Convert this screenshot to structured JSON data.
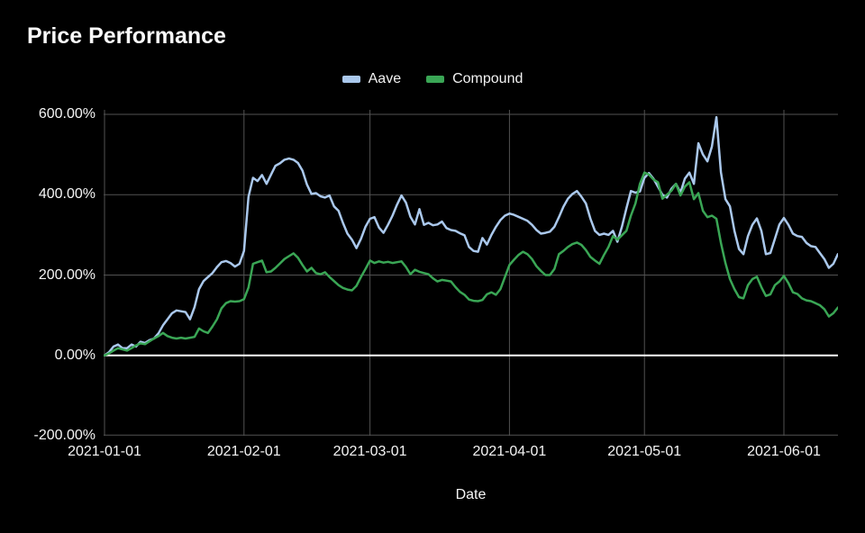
{
  "page": {
    "background": "#000000",
    "text_color": "#f2f2f2"
  },
  "header": {
    "title": "Price Performance"
  },
  "legend": {
    "items": [
      {
        "label": "Aave",
        "color": "#aac8ec"
      },
      {
        "label": "Compound",
        "color": "#3aa655"
      }
    ]
  },
  "chart_data": {
    "type": "line",
    "title": "Price Performance",
    "xlabel": "Date",
    "ylabel": "",
    "y_unit": "percent",
    "ylim": [
      -200,
      600
    ],
    "grid": true,
    "grid_color": "#525252",
    "zero_line_color": "#ffffff",
    "legend_position": "top-center",
    "x_start": "2021-01-01",
    "x_step_days": 1,
    "x_tick_labels": [
      "2021-01-01",
      "2021-02-01",
      "2021-03-01",
      "2021-04-01",
      "2021-05-01",
      "2021-06-01"
    ],
    "x_tick_day_index": [
      0,
      31,
      59,
      90,
      120,
      151
    ],
    "y_tick_labels": [
      "600.00%",
      "400.00%",
      "200.00%",
      "0.00%",
      "-200.00%"
    ],
    "y_tick_values": [
      600,
      400,
      200,
      0,
      -200
    ],
    "series": [
      {
        "name": "Aave",
        "color": "#aac8ec",
        "values": [
          0,
          8,
          22,
          27,
          18,
          18,
          27,
          22,
          34,
          31,
          38,
          42,
          55,
          75,
          90,
          105,
          112,
          110,
          108,
          90,
          120,
          165,
          185,
          195,
          205,
          220,
          232,
          235,
          230,
          221,
          228,
          260,
          395,
          442,
          434,
          449,
          427,
          450,
          472,
          478,
          487,
          490,
          487,
          479,
          460,
          425,
          402,
          404,
          396,
          393,
          398,
          371,
          360,
          330,
          303,
          288,
          267,
          290,
          320,
          340,
          344,
          318,
          305,
          325,
          348,
          375,
          398,
          380,
          345,
          326,
          364,
          325,
          330,
          324,
          326,
          333,
          317,
          312,
          310,
          304,
          299,
          270,
          260,
          258,
          292,
          276,
          300,
          320,
          337,
          348,
          353,
          350,
          345,
          340,
          335,
          325,
          312,
          303,
          305,
          308,
          320,
          344,
          370,
          390,
          402,
          409,
          395,
          378,
          340,
          310,
          300,
          303,
          300,
          310,
          283,
          320,
          366,
          409,
          405,
          408,
          442,
          454,
          440,
          420,
          400,
          393,
          415,
          427,
          405,
          440,
          455,
          427,
          528,
          500,
          483,
          520,
          593,
          456,
          389,
          371,
          310,
          265,
          252,
          297,
          325,
          341,
          310,
          252,
          255,
          290,
          326,
          342,
          325,
          303,
          297,
          295,
          280,
          272,
          270,
          255,
          240,
          218,
          228,
          252
        ]
      },
      {
        "name": "Compound",
        "color": "#3aa655",
        "values": [
          0,
          5,
          12,
          18,
          15,
          12,
          18,
          25,
          30,
          28,
          35,
          42,
          48,
          56,
          48,
          44,
          42,
          44,
          42,
          44,
          46,
          67,
          60,
          56,
          72,
          90,
          117,
          130,
          135,
          134,
          135,
          140,
          169,
          228,
          232,
          236,
          207,
          209,
          218,
          229,
          240,
          247,
          254,
          243,
          225,
          209,
          218,
          205,
          202,
          207,
          195,
          185,
          175,
          168,
          164,
          162,
          173,
          195,
          215,
          236,
          230,
          234,
          231,
          233,
          230,
          232,
          234,
          220,
          202,
          213,
          208,
          205,
          202,
          192,
          184,
          188,
          186,
          184,
          170,
          158,
          151,
          139,
          136,
          135,
          138,
          152,
          157,
          151,
          165,
          195,
          225,
          238,
          250,
          258,
          252,
          240,
          222,
          210,
          200,
          200,
          215,
          252,
          260,
          270,
          277,
          281,
          275,
          262,
          245,
          236,
          228,
          250,
          270,
          297,
          288,
          299,
          310,
          348,
          378,
          427,
          455,
          450,
          438,
          431,
          390,
          400,
          410,
          427,
          398,
          420,
          431,
          389,
          404,
          360,
          344,
          348,
          340,
          280,
          230,
          190,
          165,
          145,
          142,
          175,
          190,
          196,
          170,
          148,
          152,
          175,
          184,
          198,
          180,
          157,
          153,
          142,
          137,
          135,
          130,
          125,
          115,
          97,
          105,
          119
        ]
      }
    ]
  }
}
